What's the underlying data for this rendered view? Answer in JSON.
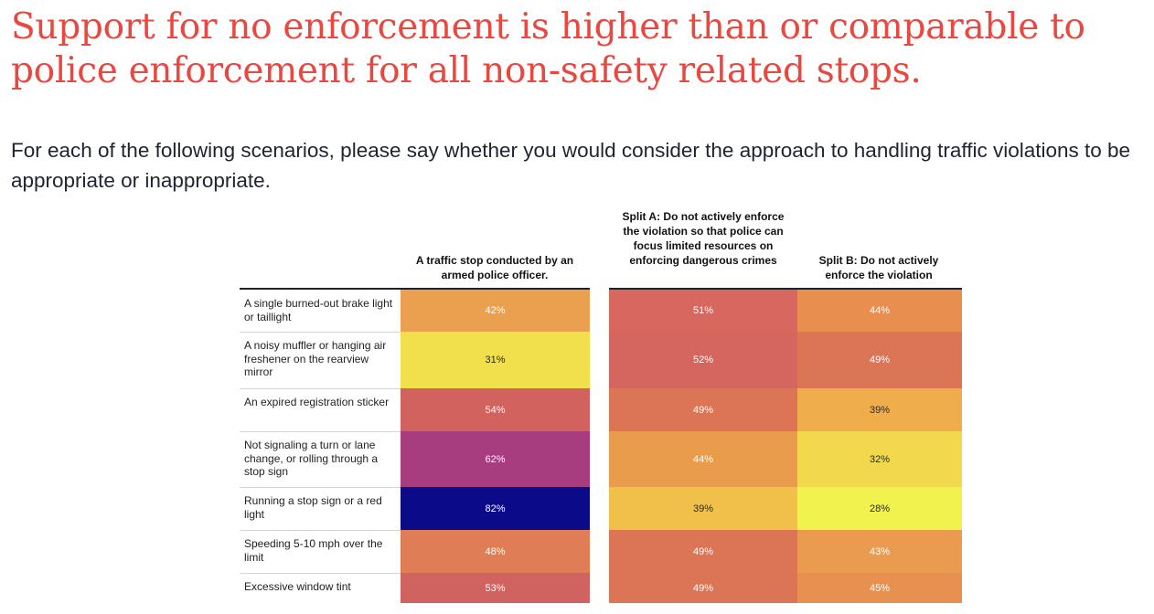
{
  "headline": "Support for no enforcement is higher than or comparable to police enforcement for all non-safety related stops.",
  "subtitle": "For each of the following scenarios, please say whether you would consider the approach to handling traffic violations to be appropriate or inappropriate.",
  "chart_data": {
    "type": "heatmap",
    "value_suffix": "%",
    "columns": [
      {
        "key": "police",
        "label": "A traffic stop conducted by an armed police officer."
      },
      {
        "key": "split_a",
        "label": "Split A: Do not actively enforce the violation so that police can focus limited resources on enforcing dangerous crimes"
      },
      {
        "key": "split_b",
        "label": "Split B: Do not actively enforce the violation"
      }
    ],
    "rows": [
      {
        "label": "A single burned-out brake light or taillight",
        "values": [
          42,
          51,
          44
        ],
        "colors": [
          "#eba04f",
          "#d8675f",
          "#e88f50"
        ]
      },
      {
        "label": "A noisy muffler or hanging air freshener on the rearview mirror",
        "values": [
          31,
          52,
          49
        ],
        "colors": [
          "#f1df4c",
          "#d5665f",
          "#dc7456"
        ]
      },
      {
        "label": "An expired registration sticker",
        "values": [
          54,
          49,
          39
        ],
        "colors": [
          "#d1625e",
          "#dc7556",
          "#f0ad4c"
        ]
      },
      {
        "label": "Not signaling a turn or lane change, or rolling through a stop sign",
        "values": [
          62,
          44,
          32
        ],
        "colors": [
          "#a73c7f",
          "#e99c4c",
          "#f1d84c"
        ]
      },
      {
        "label": "Running a stop sign or a red light",
        "values": [
          82,
          39,
          28
        ],
        "colors": [
          "#0b0a88",
          "#f0c04a",
          "#f2f24e"
        ]
      },
      {
        "label": "Speeding 5-10 mph over the limit",
        "values": [
          48,
          49,
          43
        ],
        "colors": [
          "#df7d57",
          "#dc7556",
          "#eb9b50"
        ]
      },
      {
        "label": "Excessive window tint",
        "values": [
          53,
          49,
          45
        ],
        "colors": [
          "#d0625f",
          "#dc7556",
          "#e7904f"
        ]
      }
    ]
  }
}
